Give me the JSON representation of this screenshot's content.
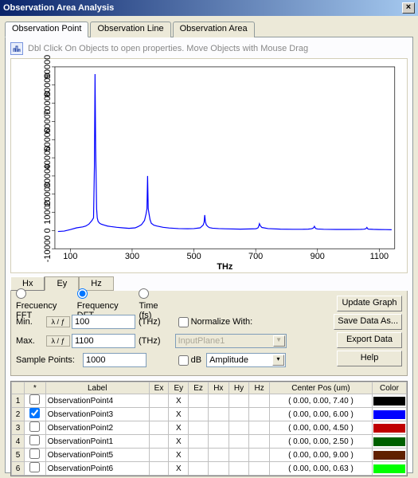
{
  "window": {
    "title": "Observation Area Analysis"
  },
  "tabs": [
    "Observation Point",
    "Observation Line",
    "Observation Area"
  ],
  "active_tab": 0,
  "hint": "Dbl Click On Objects to open properties.  Move Objects with Mouse Drag",
  "chart": {
    "type": "line",
    "xlabel": "THz",
    "xlim": [
      50,
      1150
    ],
    "xticks": [
      100,
      300,
      500,
      700,
      900,
      1100
    ],
    "ylim": [
      -10000,
      90000
    ],
    "yticks": [
      -10000,
      0,
      10000,
      20000,
      30000,
      40000,
      50000,
      60000,
      70000,
      80000,
      90000
    ],
    "line_color": "#0000ff",
    "line_width": 1.2,
    "background": "#ffffff",
    "grid_color": "#000000",
    "tick_fontsize": 9,
    "series_x": [
      60,
      80,
      100,
      120,
      140,
      150,
      160,
      170,
      175,
      178,
      180,
      182,
      185,
      187,
      190,
      195,
      200,
      210,
      220,
      230,
      250,
      270,
      290,
      310,
      320,
      330,
      340,
      345,
      348,
      350,
      352,
      355,
      358,
      362,
      370,
      380,
      400,
      420,
      450,
      480,
      500,
      520,
      525,
      530,
      533,
      535,
      537,
      540,
      545,
      550,
      560,
      580,
      600,
      650,
      680,
      700,
      705,
      708,
      710,
      712,
      715,
      720,
      740,
      780,
      820,
      850,
      870,
      880,
      885,
      888,
      890,
      892,
      895,
      900,
      920,
      960,
      1000,
      1040,
      1050,
      1055,
      1058,
      1060,
      1062,
      1065,
      1080,
      1100,
      1120,
      1140
    ],
    "series_y": [
      -500,
      -300,
      500,
      1500,
      2000,
      2500,
      3500,
      5500,
      7000,
      35000,
      86000,
      45000,
      12000,
      7000,
      5000,
      4000,
      3500,
      3000,
      2500,
      2200,
      1800,
      1500,
      1200,
      1500,
      2200,
      3200,
      5500,
      9000,
      12000,
      30000,
      12000,
      9000,
      6000,
      4000,
      3000,
      2500,
      1800,
      1400,
      1100,
      1000,
      1100,
      1500,
      2200,
      3000,
      4500,
      8500,
      5000,
      3200,
      2200,
      1600,
      1300,
      1100,
      950,
      800,
      850,
      1000,
      1200,
      1600,
      2500,
      3800,
      2600,
      1700,
      1100,
      800,
      700,
      700,
      800,
      950,
      1200,
      1700,
      2300,
      1600,
      1100,
      850,
      700,
      600,
      600,
      650,
      750,
      900,
      1200,
      1700,
      1100,
      800,
      650,
      550,
      500,
      450
    ]
  },
  "axis_tabs": [
    "Hx",
    "Ey",
    "Hz"
  ],
  "axis_active": 1,
  "freq_mode": {
    "options": [
      "Frecuency FFT",
      "Frequency DFT",
      "Time (fs)"
    ],
    "selected": 1
  },
  "min": {
    "label": "Min.",
    "unit_btn": "λ / ƒ",
    "value": "100",
    "unit": "(THz)"
  },
  "max": {
    "label": "Max.",
    "unit_btn": "λ / ƒ",
    "value": "1100",
    "unit": "(THz)"
  },
  "sample": {
    "label": "Sample Points:",
    "value": "1000"
  },
  "normalize": {
    "label": "Normalize With:",
    "checked": false,
    "source": "InputPlane1"
  },
  "db": {
    "label": "dB",
    "checked": false
  },
  "amp_select": {
    "value": "Amplitude"
  },
  "buttons": {
    "update": "Update Graph",
    "save": "Save Data As...",
    "export": "Export Data",
    "help": "Help"
  },
  "table": {
    "columns": [
      "",
      "*",
      "Label",
      "Ex",
      "Ey",
      "Ez",
      "Hx",
      "Hy",
      "Hz",
      "Center Pos (um)",
      "Color"
    ],
    "rows": [
      {
        "n": "1",
        "chk": false,
        "label": "ObservationPoint4",
        "ey": "X",
        "pos": "( 0.00, 0.00, 7.40 )",
        "color": "#000000"
      },
      {
        "n": "2",
        "chk": true,
        "label": "ObservationPoint3",
        "ey": "X",
        "pos": "( 0.00, 0.00, 6.00 )",
        "color": "#0000ff"
      },
      {
        "n": "3",
        "chk": false,
        "label": "ObservationPoint2",
        "ey": "X",
        "pos": "( 0.00, 0.00, 4.50 )",
        "color": "#c00000"
      },
      {
        "n": "4",
        "chk": false,
        "label": "ObservationPoint1",
        "ey": "X",
        "pos": "( 0.00, 0.00, 2.50 )",
        "color": "#006000"
      },
      {
        "n": "5",
        "chk": false,
        "label": "ObservationPoint5",
        "ey": "X",
        "pos": "( 0.00, 0.00, 9.00 )",
        "color": "#602000"
      },
      {
        "n": "6",
        "chk": false,
        "label": "ObservationPoint6",
        "ey": "X",
        "pos": "( 0.00, 0.00, 0.63 )",
        "color": "#00ff00"
      }
    ]
  }
}
